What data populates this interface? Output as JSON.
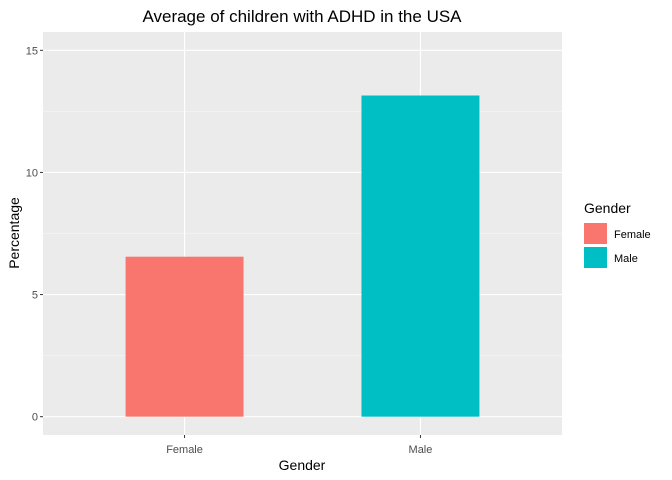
{
  "chart_data": {
    "type": "bar",
    "title": "Average of children with ADHD in the USA",
    "xlabel": "Gender",
    "ylabel": "Percentage",
    "categories": [
      "Female",
      "Male"
    ],
    "values": [
      6.55,
      13.15
    ],
    "ylim": [
      -0.75,
      15.75
    ],
    "yticks": [
      0,
      5,
      10,
      15
    ],
    "grid": true,
    "colors": [
      "#F8766D",
      "#00BFC4"
    ],
    "legend": {
      "title": "Gender",
      "placement": "right",
      "entries": [
        "Female",
        "Male"
      ]
    }
  }
}
